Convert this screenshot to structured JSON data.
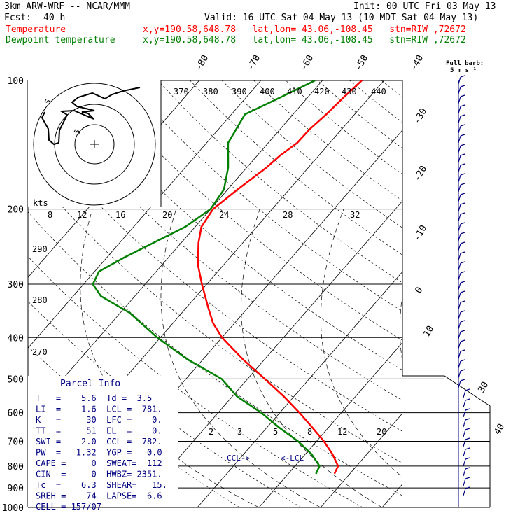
{
  "header": {
    "model": "3km ARW-WRF -- NCAR/MMM",
    "init": "Init: 00 UTC Fri 03 May 13",
    "fcst_label": "Fcst:",
    "fcst_value": "40 h",
    "valid": "Valid: 16 UTC Sat 04 May 13 (10 MDT Sat 04 May 13)",
    "temp_label": "Temperature",
    "dew_label": "Dewpoint temperature",
    "location": "x,y=190.58,648.78   lat,lon= 43.06,-108.45   stn=RIW ,72672"
  },
  "colors": {
    "temperature": "#ff0000",
    "dewpoint": "#008000",
    "panel": "#000080",
    "barbs": "#000080"
  },
  "chart_data": {
    "type": "line",
    "title": "Skew-T log-P sounding",
    "y_scale": "log-pressure",
    "ylim": [
      1000,
      100
    ],
    "pressure_levels": [
      100,
      200,
      300,
      400,
      500,
      600,
      700,
      800,
      900,
      1000
    ],
    "temp_axis_top": [
      "-80",
      "-70",
      "-60",
      "-50",
      "-40"
    ],
    "temp_axis_right": [
      "-30",
      "-20",
      "-10",
      "0",
      "10",
      "30",
      "40"
    ],
    "theta_labels": [
      "370",
      "380",
      "390",
      "400",
      "410",
      "420",
      "430",
      "440",
      "290",
      "280",
      "270"
    ],
    "mixing_ratio_labels": [
      "2",
      "3",
      "5",
      "8",
      "12",
      "20"
    ],
    "hodograph": {
      "units": "kts",
      "ring_labels": [
        "5",
        "5"
      ],
      "speed_ticks": [
        "8",
        "12",
        "16",
        "20",
        "24",
        "28",
        "32"
      ]
    },
    "series": [
      {
        "name": "Temperature",
        "points": [
          [
            834,
            -2.5
          ],
          [
            800,
            -3.0
          ],
          [
            750,
            -5.6
          ],
          [
            700,
            -8.8
          ],
          [
            650,
            -12.6
          ],
          [
            600,
            -16.8
          ],
          [
            550,
            -21.6
          ],
          [
            500,
            -27.2
          ],
          [
            450,
            -33.5
          ],
          [
            400,
            -40.0
          ],
          [
            370,
            -43.5
          ],
          [
            340,
            -46.5
          ],
          [
            300,
            -50.8
          ],
          [
            270,
            -54.2
          ],
          [
            240,
            -57.2
          ],
          [
            220,
            -59.0
          ],
          [
            200,
            -59.6
          ],
          [
            180,
            -58.4
          ],
          [
            160,
            -56.8
          ],
          [
            150,
            -56.3
          ],
          [
            140,
            -55.3
          ],
          [
            130,
            -55.2
          ],
          [
            120,
            -54.6
          ],
          [
            110,
            -54.2
          ],
          [
            100,
            -53.6
          ]
        ]
      },
      {
        "name": "Dewpoint temperature",
        "points": [
          [
            834,
            -5.5
          ],
          [
            800,
            -6.0
          ],
          [
            750,
            -9.0
          ],
          [
            700,
            -13.0
          ],
          [
            650,
            -18.0
          ],
          [
            600,
            -23.0
          ],
          [
            550,
            -29.2
          ],
          [
            500,
            -34.2
          ],
          [
            450,
            -42.5
          ],
          [
            400,
            -50.5
          ],
          [
            350,
            -58.5
          ],
          [
            320,
            -65.5
          ],
          [
            300,
            -68.5
          ],
          [
            280,
            -69.3
          ],
          [
            260,
            -67.2
          ],
          [
            240,
            -64.5
          ],
          [
            220,
            -61.6
          ],
          [
            200,
            -60.0
          ],
          [
            180,
            -60.6
          ],
          [
            160,
            -63.0
          ],
          [
            140,
            -66.5
          ],
          [
            120,
            -67.8
          ],
          [
            110,
            -64.6
          ],
          [
            100,
            -61.2
          ]
        ]
      }
    ],
    "annotations": [
      "CCL->",
      "<-LCL"
    ]
  },
  "parcel": {
    "title": "Parcel Info",
    "rows": [
      "T   =    5.6  Td =  3.5",
      "LI  =    1.6  LCL =  781.",
      "K   =     30  LFC =    0.",
      "TT  =     51  EL  =    0.",
      "SWI =    2.0  CCL =  782.",
      "PW  =   1.32  YGP =   0.0",
      "CAPE =     0  SWEAT=  112",
      "CIN  =     0  HWBZ= 2351.",
      "Tc  =    6.3  SHEAR=   15.",
      "SREH =    74  LAPSE=  6.6",
      "CELL = 157/07"
    ]
  },
  "barbs": {
    "title": "Full barb:",
    "unit": "5 m s⁻¹"
  }
}
